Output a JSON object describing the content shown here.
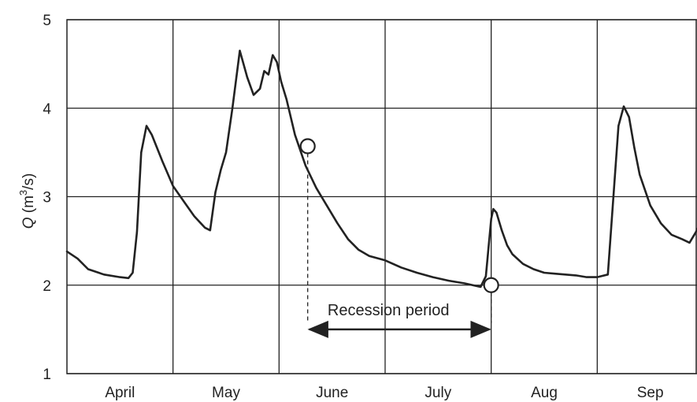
{
  "chart_data": {
    "type": "line",
    "title": "",
    "ylabel": "Q (m³/s)",
    "ylabel_var": "Q",
    "ylabel_unit_prefix": " (m",
    "ylabel_unit_sup": "3",
    "ylabel_unit_suffix": "/s)",
    "xlabel": "",
    "ylim": [
      1,
      5
    ],
    "yticks": [
      1,
      2,
      3,
      4,
      5
    ],
    "ytick_labels": [
      "1",
      "2",
      "3",
      "4",
      "5"
    ],
    "xlim": [
      0,
      6
    ],
    "month_boundaries": [
      1,
      2,
      3,
      4,
      5
    ],
    "months": [
      "April",
      "May",
      "June",
      "July",
      "Aug",
      "Sep"
    ],
    "grid": true,
    "series": [
      {
        "x": [
          0,
          0.1,
          0.2,
          0.35,
          0.5,
          0.58,
          0.62,
          0.66,
          0.7,
          0.75,
          0.8,
          0.9,
          1.0,
          1.1,
          1.2,
          1.3,
          1.35,
          1.4,
          1.45,
          1.5,
          1.56,
          1.63,
          1.7,
          1.76,
          1.82,
          1.86,
          1.9,
          1.94,
          1.98,
          2.02,
          2.07,
          2.15,
          2.25,
          2.35,
          2.45,
          2.55,
          2.65,
          2.75,
          2.85,
          3.0,
          3.15,
          3.3,
          3.45,
          3.6,
          3.75,
          3.9,
          3.95,
          4.0,
          4.02,
          4.05,
          4.1,
          4.15,
          4.2,
          4.3,
          4.4,
          4.5,
          4.6,
          4.7,
          4.8,
          4.9,
          5.0,
          5.1,
          5.2,
          5.25,
          5.3,
          5.35,
          5.4,
          5.5,
          5.6,
          5.7,
          5.8,
          5.87,
          5.93,
          5.98,
          6.0
        ],
        "y": [
          2.38,
          2.3,
          2.18,
          2.12,
          2.09,
          2.08,
          2.14,
          2.6,
          3.5,
          3.8,
          3.7,
          3.4,
          3.12,
          2.95,
          2.78,
          2.65,
          2.62,
          3.05,
          3.3,
          3.5,
          4.0,
          4.65,
          4.35,
          4.15,
          4.22,
          4.42,
          4.38,
          4.6,
          4.52,
          4.3,
          4.1,
          3.7,
          3.35,
          3.1,
          2.9,
          2.7,
          2.52,
          2.4,
          2.33,
          2.28,
          2.2,
          2.14,
          2.09,
          2.05,
          2.02,
          1.98,
          2.1,
          2.75,
          2.86,
          2.82,
          2.62,
          2.45,
          2.35,
          2.24,
          2.18,
          2.14,
          2.13,
          2.12,
          2.11,
          2.09,
          2.09,
          2.12,
          3.8,
          4.02,
          3.9,
          3.55,
          3.25,
          2.9,
          2.7,
          2.57,
          2.52,
          2.48,
          2.6,
          2.72,
          2.7
        ]
      }
    ],
    "markers": [
      {
        "x": 2.27,
        "y": 3.57
      },
      {
        "x": 4.0,
        "y": 2.0
      }
    ],
    "annotation": {
      "text": "Recession period",
      "from_x": 2.27,
      "to_x": 4.0,
      "arrow_y": 1.5,
      "text_y": 1.72
    }
  }
}
